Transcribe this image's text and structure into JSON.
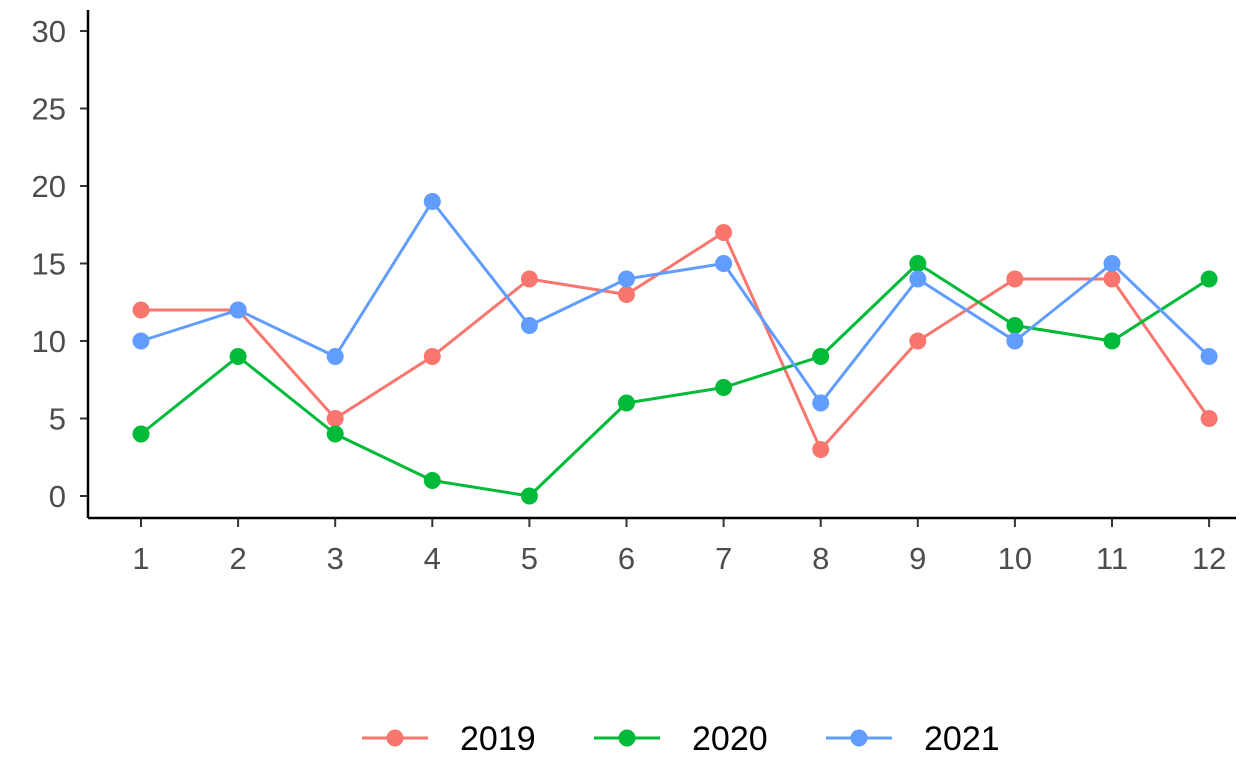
{
  "chart_data": {
    "type": "line",
    "title": "",
    "xlabel": "",
    "ylabel": "",
    "x": [
      1,
      2,
      3,
      4,
      5,
      6,
      7,
      8,
      9,
      10,
      11,
      12
    ],
    "xticks": [
      "1",
      "2",
      "3",
      "4",
      "5",
      "6",
      "7",
      "8",
      "9",
      "10",
      "11",
      "12"
    ],
    "ylim": [
      0,
      30
    ],
    "yticks": [
      "0",
      "5",
      "10",
      "15",
      "20",
      "25",
      "30"
    ],
    "grid": false,
    "legend_position": "bottom",
    "series": [
      {
        "name": "2019",
        "color": "#F8766D",
        "values": [
          12,
          12,
          5,
          9,
          14,
          13,
          17,
          3,
          10,
          14,
          14,
          5
        ]
      },
      {
        "name": "2020",
        "color": "#00BA38",
        "values": [
          4,
          9,
          4,
          1,
          0,
          6,
          7,
          9,
          15,
          11,
          10,
          14
        ]
      },
      {
        "name": "2021",
        "color": "#619CFF",
        "values": [
          10,
          12,
          9,
          19,
          11,
          14,
          15,
          6,
          14,
          10,
          15,
          9
        ]
      }
    ]
  }
}
